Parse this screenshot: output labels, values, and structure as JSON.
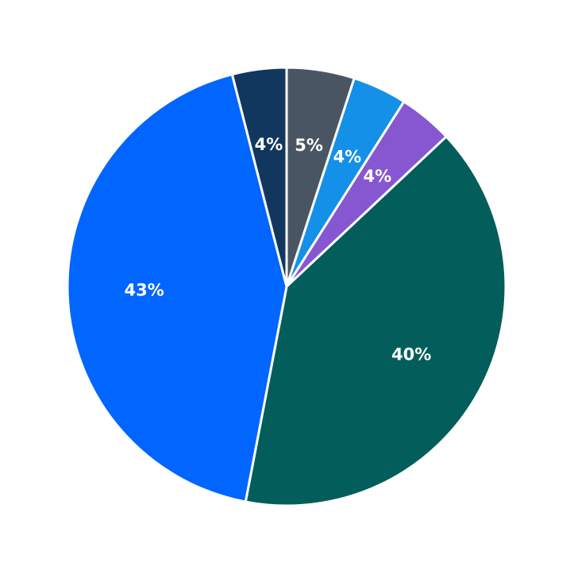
{
  "chart_data": {
    "type": "pie",
    "values": [
      5,
      4,
      4,
      40,
      43,
      4
    ],
    "value_labels": [
      "5%",
      "4%",
      "4%",
      "40%",
      "43%",
      "4%"
    ],
    "colors": [
      "#4a5563",
      "#1490e8",
      "#8757d1",
      "#035e5b",
      "#0066ff",
      "#12375f"
    ],
    "start_angle": 90,
    "direction": "clockwise"
  }
}
